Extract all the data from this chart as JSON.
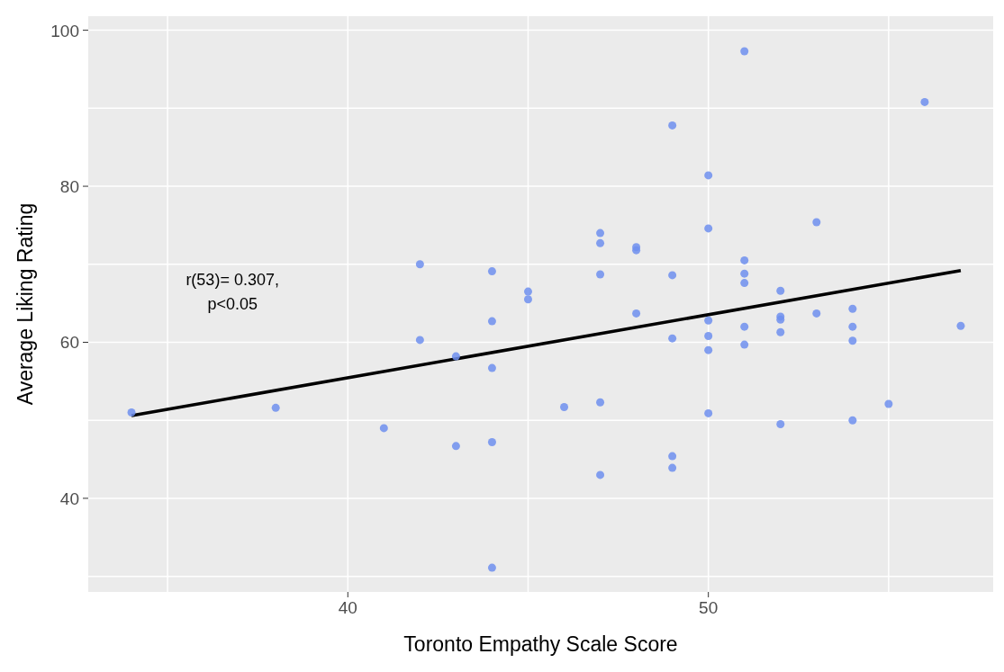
{
  "chart_data": {
    "type": "scatter",
    "xlabel": "Toronto Empathy Scale Score",
    "ylabel": "Average Liking Rating",
    "annotations": [
      "r(53)= 0.307,\np<0.05"
    ],
    "xlim": [
      32.8,
      57.9
    ],
    "ylim": [
      28,
      101.8
    ],
    "xticks": [
      {
        "value": 35,
        "label": null
      },
      40,
      {
        "value": 45,
        "label": null
      },
      50,
      {
        "value": 55,
        "label": null
      }
    ],
    "yticks": [
      {
        "value": 30,
        "label": null
      },
      40,
      {
        "value": 50,
        "label": null
      },
      60,
      {
        "value": 70,
        "label": null
      },
      80,
      {
        "value": 90,
        "label": null
      },
      100
    ],
    "grid": true,
    "series": [
      {
        "marker": "circle",
        "color": "#6f8fee",
        "x": [
          34,
          38,
          41,
          42,
          42,
          43,
          43,
          44,
          44,
          44,
          44,
          44,
          45,
          45,
          46,
          47,
          47,
          47,
          47,
          47,
          48,
          48,
          48,
          49,
          49,
          49,
          49,
          49,
          50,
          50,
          50,
          50,
          50,
          50,
          51,
          51,
          51,
          51,
          51,
          51,
          52,
          52,
          52,
          52,
          52,
          53,
          53,
          54,
          54,
          54,
          54,
          55,
          56,
          57
        ],
        "values": [
          51.0,
          51.6,
          49.0,
          70.0,
          60.3,
          58.2,
          46.7,
          69.1,
          62.7,
          56.7,
          47.2,
          31.1,
          66.5,
          65.5,
          51.7,
          74.0,
          72.7,
          68.7,
          52.3,
          43.0,
          72.2,
          71.8,
          63.7,
          87.8,
          68.6,
          60.5,
          45.4,
          43.9,
          81.4,
          74.6,
          62.8,
          60.8,
          59.0,
          50.9,
          97.3,
          70.5,
          68.8,
          67.6,
          62.0,
          59.7,
          66.6,
          63.3,
          62.9,
          61.3,
          49.5,
          75.4,
          63.7,
          64.3,
          62.0,
          60.2,
          50.0,
          52.1,
          90.8,
          62.1
        ]
      },
      {
        "type": "line",
        "marker": "none",
        "color": "#000000",
        "x": [
          34,
          57
        ],
        "values": [
          50.6,
          69.2
        ]
      }
    ]
  }
}
